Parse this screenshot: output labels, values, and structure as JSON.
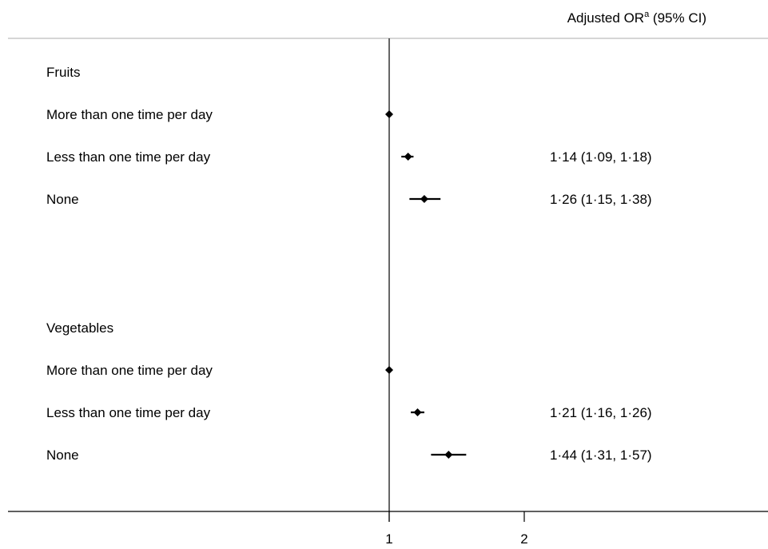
{
  "chart_data": {
    "type": "forest",
    "header": {
      "prefix": "Adjusted OR",
      "superscript": "a",
      "suffix": " (95% CI)"
    },
    "groups": [
      {
        "label": "Fruits",
        "rows": [
          {
            "label": "More than one time per day",
            "or": 1.0,
            "lower": null,
            "upper": null,
            "text": ""
          },
          {
            "label": "Less than one time per day",
            "or": 1.14,
            "lower": 1.09,
            "upper": 1.18,
            "text": "1·14 (1·09, 1·18)"
          },
          {
            "label": "None",
            "or": 1.26,
            "lower": 1.15,
            "upper": 1.38,
            "text": "1·26 (1·15, 1·38)"
          }
        ]
      },
      {
        "label": "Vegetables",
        "rows": [
          {
            "label": "More than one time per day",
            "or": 1.0,
            "lower": null,
            "upper": null,
            "text": ""
          },
          {
            "label": "Less than one time per day",
            "or": 1.21,
            "lower": 1.16,
            "upper": 1.26,
            "text": "1·21 (1·16, 1·26)"
          },
          {
            "label": "None",
            "or": 1.44,
            "lower": 1.31,
            "upper": 1.57,
            "text": "1·44 (1·31, 1·57)"
          }
        ]
      }
    ],
    "reference_line": 1,
    "x_ticks": [
      1,
      2
    ],
    "x_tick_labels": [
      "1",
      "2"
    ],
    "xlim": [
      1,
      2
    ],
    "grid": false
  }
}
